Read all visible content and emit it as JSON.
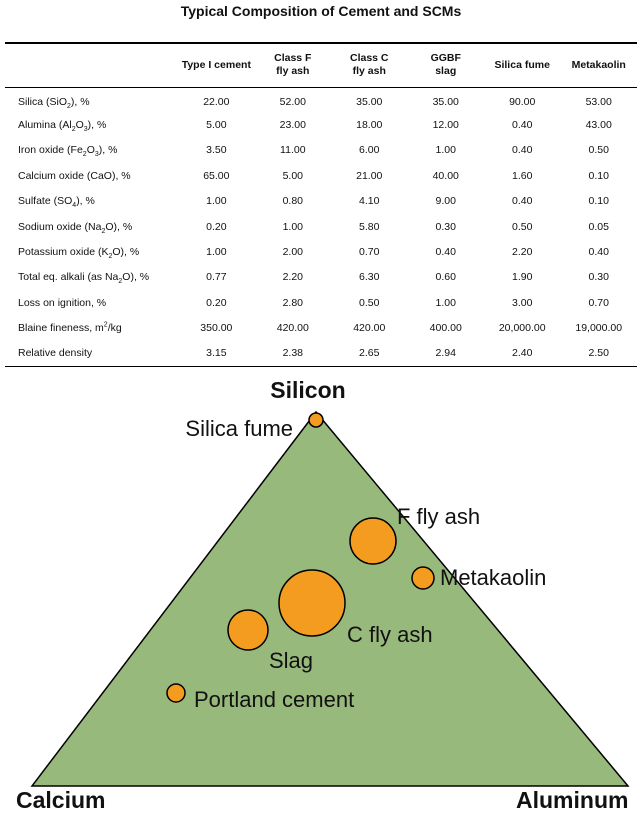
{
  "title": "Typical Composition of Cement and SCMs",
  "table": {
    "columns": [
      {
        "lines": [
          ""
        ]
      },
      {
        "lines": [
          "Type I cement"
        ]
      },
      {
        "lines": [
          "Class F",
          "fly ash"
        ]
      },
      {
        "lines": [
          "Class C",
          "fly ash"
        ]
      },
      {
        "lines": [
          "GGBF",
          "slag"
        ]
      },
      {
        "lines": [
          "Silica fume"
        ]
      },
      {
        "lines": [
          "Metakaolin"
        ]
      }
    ],
    "rows": [
      {
        "label": "Silica (SiO|2|), %",
        "values": [
          "22.00",
          "52.00",
          "35.00",
          "35.00",
          "90.00",
          "53.00"
        ]
      },
      {
        "label": "Alumina (Al|2|O|3|), %",
        "values": [
          "5.00",
          "23.00",
          "18.00",
          "12.00",
          "0.40",
          "43.00"
        ]
      },
      {
        "label": "Iron oxide (Fe|2|O|3|), %",
        "values": [
          "3.50",
          "11.00",
          "6.00",
          "1.00",
          "0.40",
          "0.50"
        ]
      },
      {
        "label": "Calcium oxide (CaO), %",
        "values": [
          "65.00",
          "5.00",
          "21.00",
          "40.00",
          "1.60",
          "0.10"
        ]
      },
      {
        "label": "Sulfate (SO|4|), %",
        "values": [
          "1.00",
          "0.80",
          "4.10",
          "9.00",
          "0.40",
          "0.10"
        ]
      },
      {
        "label": "Sodium oxide (Na|2|O), %",
        "values": [
          "0.20",
          "1.00",
          "5.80",
          "0.30",
          "0.50",
          "0.05"
        ]
      },
      {
        "label": "Potassium oxide (K|2|O), %",
        "values": [
          "1.00",
          "2.00",
          "0.70",
          "0.40",
          "2.20",
          "0.40"
        ]
      },
      {
        "label": "Total eq. alkali (as Na|2|O), %",
        "values": [
          "0.77",
          "2.20",
          "6.30",
          "0.60",
          "1.90",
          "0.30"
        ]
      },
      {
        "label": "Loss on ignition, %",
        "values": [
          "0.20",
          "2.80",
          "0.50",
          "1.00",
          "3.00",
          "0.70"
        ]
      },
      {
        "label": "Blaine fineness, m^2^/kg",
        "values": [
          "350.00",
          "420.00",
          "420.00",
          "400.00",
          "20,000.00",
          "19,000.00"
        ]
      },
      {
        "label": "Relative density",
        "values": [
          "3.15",
          "2.38",
          "2.65",
          "2.94",
          "2.40",
          "2.50"
        ]
      }
    ]
  },
  "diagram": {
    "colors": {
      "triangle_fill": "#98b97c",
      "triangle_stroke": "#000000",
      "marker_fill": "#f39c1f",
      "marker_stroke": "#000000"
    },
    "vertices": {
      "top": "Silicon",
      "left": "Calcium",
      "right": "Aluminum"
    },
    "materials": [
      {
        "label": "Silica fume"
      },
      {
        "label": "F fly ash"
      },
      {
        "label": "Metakaolin"
      },
      {
        "label": "C fly ash"
      },
      {
        "label": "Slag"
      },
      {
        "label": "Portland cement"
      }
    ]
  }
}
